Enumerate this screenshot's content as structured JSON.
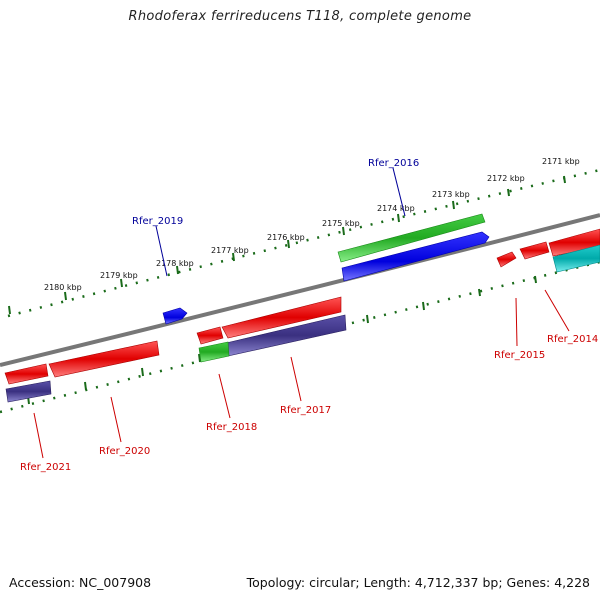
{
  "title": "Rhodoferax ferrireducens T118, complete genome",
  "footer": {
    "accession": "Accession: NC_007908",
    "summary": "Topology: circular; Length: 4,712,337 bp; Genes: 4,228"
  },
  "kbp_labels": [
    "2171 kbp",
    "2172 kbp",
    "2173 kbp",
    "2174 kbp",
    "2175 kbp",
    "2176 kbp",
    "2177 kbp",
    "2178 kbp",
    "2179 kbp",
    "2180 kbp"
  ],
  "gene_labels": {
    "rfer_2014": "Rfer_2014",
    "rfer_2015": "Rfer_2015",
    "rfer_2016": "Rfer_2016",
    "rfer_2017": "Rfer_2017",
    "rfer_2018": "Rfer_2018",
    "rfer_2019": "Rfer_2019",
    "rfer_2020": "Rfer_2020",
    "rfer_2021": "Rfer_2021"
  },
  "colors": {
    "cds": "#ee1111",
    "cds_light": "#ff7070",
    "top_blue": "#1111dd",
    "green": "#33bb33",
    "purple": "#4a3f8f",
    "cyan": "#11bbbb",
    "backbone": "#777777",
    "ruler": "#1a6b1a",
    "label_red": "#cc0000",
    "label_blue": "#000099"
  }
}
